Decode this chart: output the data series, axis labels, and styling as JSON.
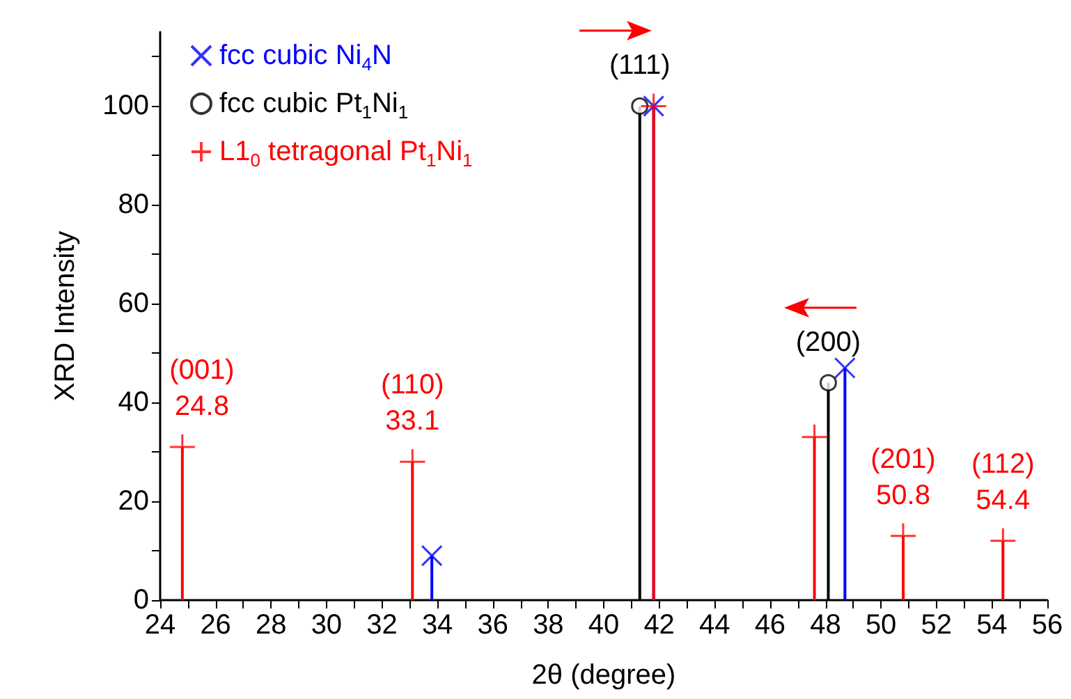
{
  "chart_data": {
    "type": "lollipop",
    "xlabel": "2θ (degree)",
    "ylabel": "XRD Intensity",
    "xlim": [
      24,
      56
    ],
    "xticks": [
      24,
      {
        "value": 25,
        "label": null
      },
      26,
      {
        "value": 27,
        "label": null
      },
      28,
      {
        "value": 29,
        "label": null
      },
      30,
      {
        "value": 31,
        "label": null
      },
      32,
      {
        "value": 33,
        "label": null
      },
      34,
      {
        "value": 35,
        "label": null
      },
      36,
      {
        "value": 37,
        "label": null
      },
      38,
      {
        "value": 39,
        "label": null
      },
      40,
      {
        "value": 41,
        "label": null
      },
      42,
      {
        "value": 43,
        "label": null
      },
      44,
      {
        "value": 45,
        "label": null
      },
      46,
      {
        "value": 47,
        "label": null
      },
      48,
      {
        "value": 49,
        "label": null
      },
      50,
      {
        "value": 51,
        "label": null
      },
      52,
      {
        "value": 53,
        "label": null
      },
      54,
      {
        "value": 55,
        "label": null
      },
      56
    ],
    "ylim": [
      0,
      115
    ],
    "yticks": [
      0,
      {
        "value": 10,
        "label": null
      },
      20,
      {
        "value": 30,
        "label": null
      },
      40,
      {
        "value": 50,
        "label": null
      },
      60,
      {
        "value": 70,
        "label": null
      },
      80,
      {
        "value": 90,
        "label": null
      },
      100,
      {
        "value": 110,
        "label": null
      }
    ],
    "grid": false,
    "legend": "top left",
    "series": [
      {
        "name": "fcc cubic Ni$_{4}$N",
        "color": "#0000ff",
        "marker": "cross",
        "x": [
          33.8,
          41.8,
          48.7
        ],
        "values": [
          9,
          100,
          47
        ]
      },
      {
        "name": "fcc cubic Pt$_{1}$Ni$_{1}$",
        "color": "#000000",
        "marker": "circle",
        "x": [
          41.3,
          48.1
        ],
        "values": [
          100,
          44
        ]
      },
      {
        "name": "L1$_{0}$ tetragonal Pt$_{1}$Ni$_{1}$",
        "color": "#ff0000",
        "marker": "plus",
        "x": [
          24.8,
          33.1,
          41.8,
          47.6,
          50.8,
          54.4
        ],
        "values": [
          31,
          28,
          100,
          33,
          13,
          12
        ]
      }
    ],
    "annotations": [
      {
        "text": "(001)\n24.8",
        "x": 24.8,
        "y": 31
      },
      {
        "text": "(110)\n33.1",
        "x": 33.1,
        "y": 28
      },
      {
        "text": "(111)",
        "x": 41.3,
        "y": 100
      },
      {
        "text": "(200)",
        "x": 48.1,
        "y": 44
      },
      {
        "text": "(201)\n50.8",
        "x": 50.8,
        "y": 13
      },
      {
        "text": "(112)\n54.4",
        "x": 54.4,
        "y": 12
      }
    ]
  }
}
